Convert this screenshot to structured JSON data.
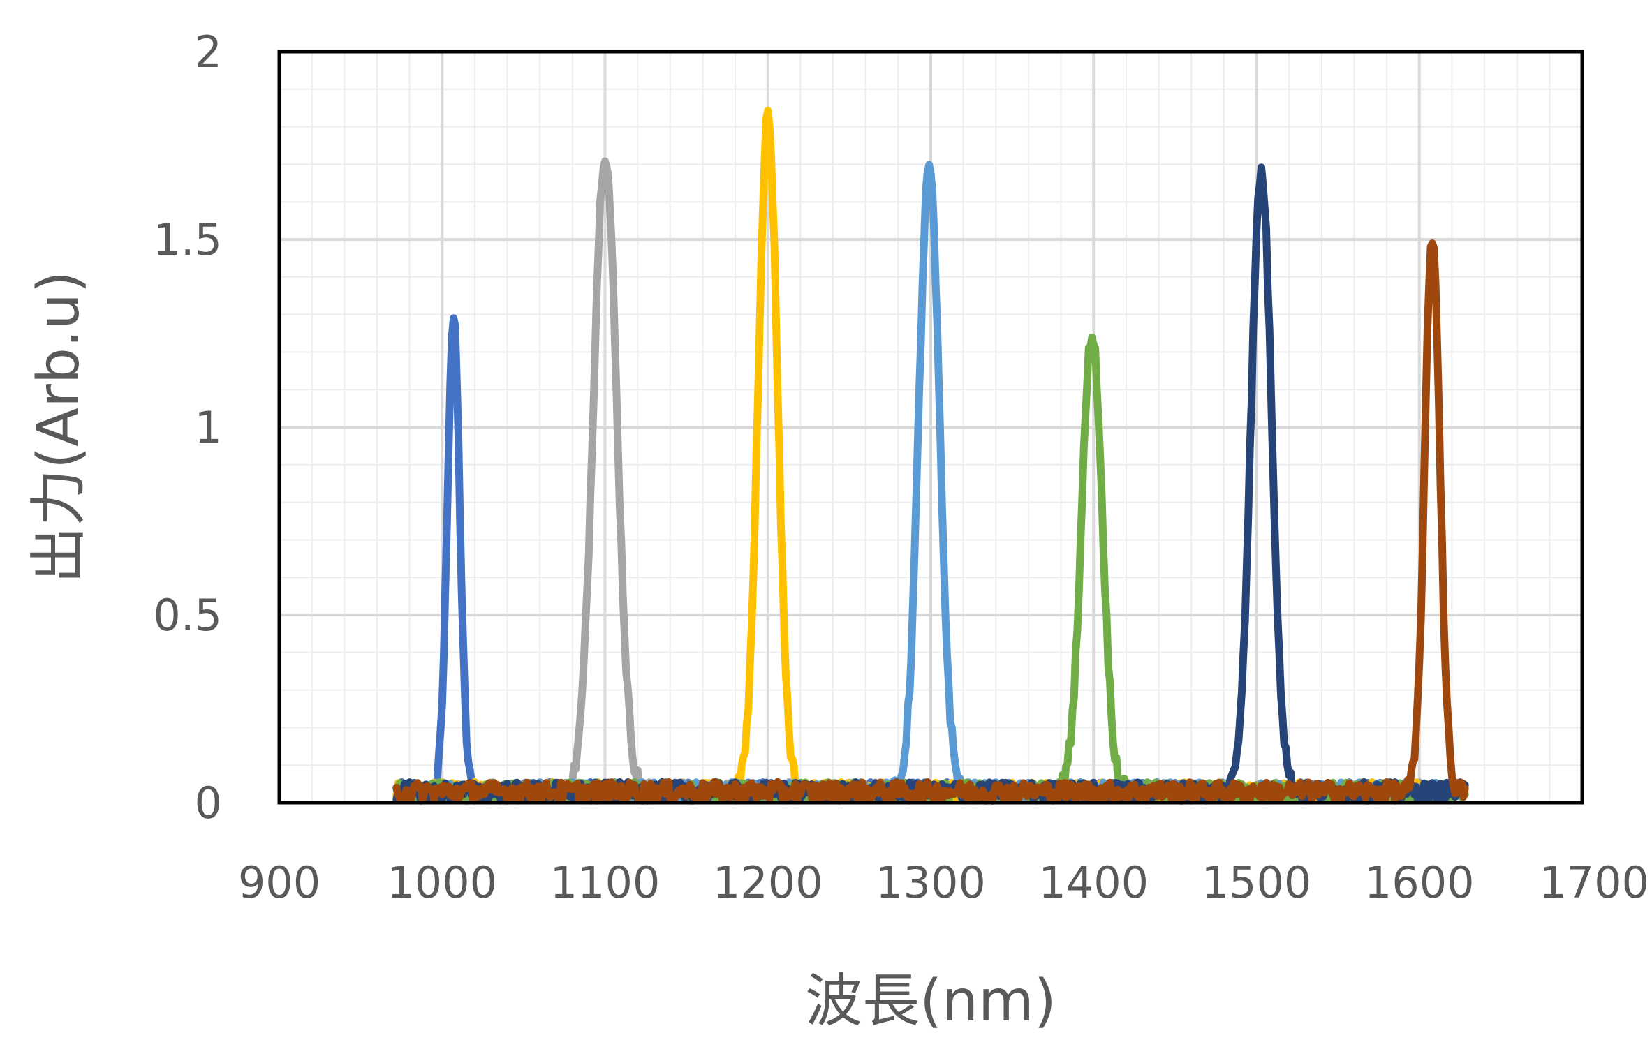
{
  "chart_data": {
    "type": "line",
    "title": "",
    "xlabel": "波長(nm)",
    "ylabel": "出力(Arb.u)",
    "xlim": [
      900,
      1700
    ],
    "ylim": [
      0,
      2
    ],
    "x_ticks": [
      900,
      1000,
      1100,
      1200,
      1300,
      1400,
      1500,
      1600,
      1700
    ],
    "y_ticks": [
      0,
      0.5,
      1,
      1.5,
      2
    ],
    "x_tick_labels": [
      "900",
      "1000",
      "1100",
      "1200",
      "1300",
      "1400",
      "1500",
      "1600",
      "1700"
    ],
    "y_tick_labels": [
      "0",
      "0.5",
      "1",
      "1.5",
      "2"
    ],
    "x_minor_step": 20,
    "y_minor_step": 0.1,
    "grid": true,
    "legend": "none",
    "x_range_of_data": [
      972,
      1628
    ],
    "series": [
      {
        "color": "#4472C4",
        "peak_x": 1007,
        "peak_y": 1.26,
        "fwhm": 9,
        "baseline": 0.03
      },
      {
        "color": "#A5A5A5",
        "peak_x": 1100,
        "peak_y": 1.7,
        "fwhm": 17,
        "baseline": 0.03
      },
      {
        "color": "#FFC000",
        "peak_x": 1200,
        "peak_y": 1.8,
        "fwhm": 14,
        "baseline": 0.03
      },
      {
        "color": "#5B9BD5",
        "peak_x": 1299,
        "peak_y": 1.66,
        "fwhm": 15,
        "baseline": 0.03
      },
      {
        "color": "#70AD47",
        "peak_x": 1399,
        "peak_y": 1.22,
        "fwhm": 15,
        "baseline": 0.03
      },
      {
        "color": "#264478",
        "peak_x": 1503,
        "peak_y": 1.65,
        "fwhm": 15,
        "baseline": 0.03
      },
      {
        "color": "#9E480E",
        "peak_x": 1608,
        "peak_y": 1.48,
        "fwhm": 11,
        "baseline": 0.03
      }
    ]
  }
}
